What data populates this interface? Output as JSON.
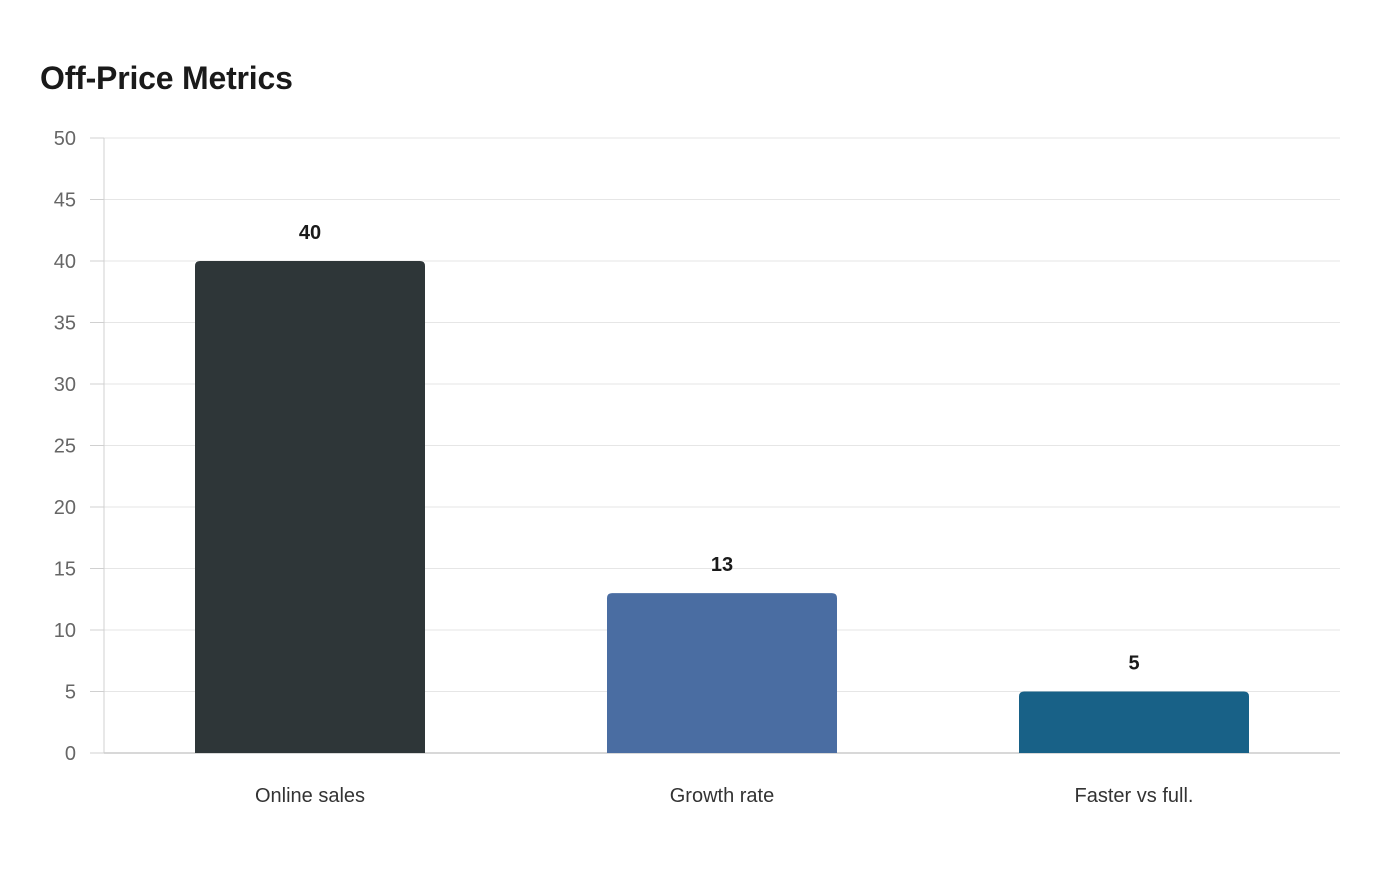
{
  "chart_data": {
    "type": "bar",
    "title": "Off-Price Metrics",
    "xlabel": "",
    "ylabel": "",
    "categories": [
      "Online sales",
      "Growth rate",
      "Faster vs full."
    ],
    "values": [
      40,
      13,
      5
    ],
    "colors": [
      "#2e3638",
      "#4a6da2",
      "#186187"
    ],
    "ylim": [
      0,
      50
    ],
    "yticks": [
      0,
      5,
      10,
      15,
      20,
      25,
      30,
      35,
      40,
      45,
      50
    ],
    "grid": true,
    "legend": "none"
  }
}
